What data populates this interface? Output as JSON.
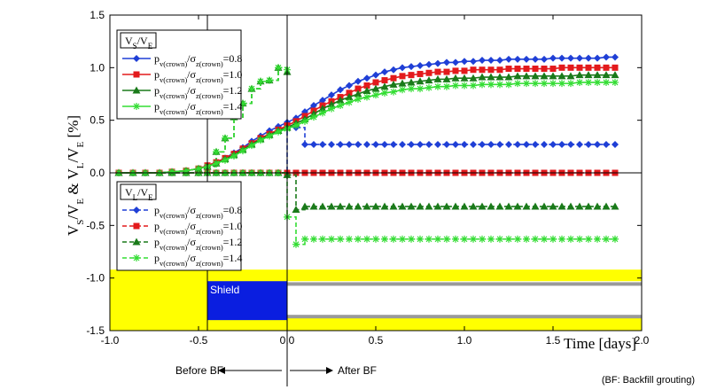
{
  "chart_data": {
    "type": "line",
    "xlabel": "Time [days]",
    "ylabel": "V_S/V_E & V_L/V_E [%]",
    "xlim": [
      -1.0,
      2.0
    ],
    "ylim": [
      -1.5,
      1.5
    ],
    "xticks": [
      "-1.0",
      "-0.5",
      "0.0",
      "0.5",
      "1.0",
      "1.5",
      "2.0"
    ],
    "yticks": [
      "1.5",
      "1.0",
      "0.5",
      "0.0",
      "-0.5",
      "-1.0",
      "-1.5"
    ],
    "legend_vs": {
      "title_main": "V",
      "title_sub1": "S",
      "title_div": "/V",
      "title_sub2": "E",
      "entries": [
        {
          "pre": "p",
          "sub1": "v(crown)",
          "mid": "/σ",
          "sub2": "z(crown)",
          "val": "=0.8"
        },
        {
          "pre": "p",
          "sub1": "v(crown)",
          "mid": "/σ",
          "sub2": "z(crown)",
          "val": "=1.0"
        },
        {
          "pre": "p",
          "sub1": "v(crown)",
          "mid": "/σ",
          "sub2": "z(crown)",
          "val": "=1.2"
        },
        {
          "pre": "p",
          "sub1": "v(crown)",
          "mid": "/σ",
          "sub2": "z(crown)",
          "val": "=1.4"
        }
      ]
    },
    "legend_vl": {
      "title_main": "V",
      "title_sub1": "L",
      "title_div": "/V",
      "title_sub2": "E",
      "entries": [
        {
          "pre": "p",
          "sub1": "v(crown)",
          "mid": "/σ",
          "sub2": "z(crown)",
          "val": "=0.8"
        },
        {
          "pre": "p",
          "sub1": "v(crown)",
          "mid": "/σ",
          "sub2": "z(crown)",
          "val": "=1.0"
        },
        {
          "pre": "p",
          "sub1": "v(crown)",
          "mid": "/σ",
          "sub2": "z(crown)",
          "val": "=1.2"
        },
        {
          "pre": "p",
          "sub1": "v(crown)",
          "mid": "/σ",
          "sub2": "z(crown)",
          "val": "=1.4"
        }
      ]
    },
    "series_colors": [
      "#1f3fd6",
      "#e31a1c",
      "#1a7a1a",
      "#33dd33"
    ],
    "series_markers": [
      "diamond",
      "square",
      "triangle",
      "star"
    ],
    "vs_series": [
      {
        "param": 0.8,
        "x": [
          -0.95,
          -0.87,
          -0.8,
          -0.72,
          -0.65,
          -0.57,
          -0.5,
          -0.45,
          -0.4,
          -0.35,
          -0.3,
          -0.25,
          -0.2,
          -0.15,
          -0.1,
          -0.05,
          0.0,
          0.05,
          0.1,
          0.15,
          0.2,
          0.25,
          0.3,
          0.35,
          0.4,
          0.45,
          0.5,
          0.55,
          0.6,
          0.65,
          0.7,
          0.75,
          0.8,
          0.85,
          0.9,
          0.95,
          1.0,
          1.05,
          1.1,
          1.15,
          1.2,
          1.25,
          1.3,
          1.35,
          1.4,
          1.45,
          1.5,
          1.55,
          1.6,
          1.65,
          1.7,
          1.75,
          1.8,
          1.85
        ],
        "y": [
          0.0,
          0.0,
          0.0,
          0.0,
          0.01,
          0.02,
          0.04,
          0.07,
          0.1,
          0.14,
          0.19,
          0.24,
          0.3,
          0.35,
          0.4,
          0.44,
          0.48,
          0.52,
          0.58,
          0.64,
          0.69,
          0.74,
          0.79,
          0.83,
          0.87,
          0.9,
          0.93,
          0.96,
          0.98,
          1.0,
          1.01,
          1.02,
          1.03,
          1.04,
          1.05,
          1.05,
          1.06,
          1.06,
          1.07,
          1.07,
          1.07,
          1.08,
          1.08,
          1.08,
          1.08,
          1.08,
          1.09,
          1.09,
          1.09,
          1.09,
          1.09,
          1.09,
          1.1,
          1.1
        ]
      },
      {
        "param": 1.0,
        "x": [
          -0.95,
          -0.87,
          -0.8,
          -0.72,
          -0.65,
          -0.57,
          -0.5,
          -0.45,
          -0.4,
          -0.35,
          -0.3,
          -0.25,
          -0.2,
          -0.15,
          -0.1,
          -0.05,
          0.0,
          0.05,
          0.1,
          0.15,
          0.2,
          0.25,
          0.3,
          0.35,
          0.4,
          0.45,
          0.5,
          0.55,
          0.6,
          0.65,
          0.7,
          0.75,
          0.8,
          0.85,
          0.9,
          0.95,
          1.0,
          1.05,
          1.1,
          1.15,
          1.2,
          1.25,
          1.3,
          1.35,
          1.4,
          1.45,
          1.5,
          1.55,
          1.6,
          1.65,
          1.7,
          1.75,
          1.8,
          1.85
        ],
        "y": [
          0.0,
          0.0,
          0.0,
          0.0,
          0.01,
          0.02,
          0.04,
          0.07,
          0.1,
          0.14,
          0.18,
          0.23,
          0.28,
          0.33,
          0.37,
          0.41,
          0.45,
          0.49,
          0.54,
          0.59,
          0.64,
          0.68,
          0.72,
          0.76,
          0.8,
          0.83,
          0.86,
          0.88,
          0.9,
          0.92,
          0.93,
          0.94,
          0.95,
          0.96,
          0.96,
          0.97,
          0.97,
          0.98,
          0.98,
          0.98,
          0.98,
          0.99,
          0.99,
          0.99,
          0.99,
          0.99,
          0.99,
          1.0,
          1.0,
          1.0,
          1.0,
          1.0,
          1.0,
          1.0
        ]
      },
      {
        "param": 1.2,
        "x": [
          -0.95,
          -0.87,
          -0.8,
          -0.72,
          -0.65,
          -0.57,
          -0.5,
          -0.45,
          -0.4,
          -0.35,
          -0.3,
          -0.25,
          -0.2,
          -0.15,
          -0.1,
          -0.05,
          0.0,
          0.05,
          0.1,
          0.15,
          0.2,
          0.25,
          0.3,
          0.35,
          0.4,
          0.45,
          0.5,
          0.55,
          0.6,
          0.65,
          0.7,
          0.75,
          0.8,
          0.85,
          0.9,
          0.95,
          1.0,
          1.05,
          1.1,
          1.15,
          1.2,
          1.25,
          1.3,
          1.35,
          1.4,
          1.45,
          1.5,
          1.55,
          1.6,
          1.65,
          1.7,
          1.75,
          1.8,
          1.85
        ],
        "y": [
          0.0,
          0.0,
          0.0,
          0.0,
          0.01,
          0.02,
          0.04,
          0.06,
          0.09,
          0.13,
          0.17,
          0.22,
          0.27,
          0.32,
          0.36,
          0.4,
          0.43,
          0.47,
          0.51,
          0.56,
          0.61,
          0.65,
          0.69,
          0.72,
          0.75,
          0.78,
          0.8,
          0.82,
          0.84,
          0.85,
          0.86,
          0.87,
          0.88,
          0.89,
          0.89,
          0.9,
          0.9,
          0.9,
          0.91,
          0.91,
          0.91,
          0.91,
          0.92,
          0.92,
          0.92,
          0.92,
          0.92,
          0.92,
          0.92,
          0.93,
          0.93,
          0.93,
          0.93,
          0.93
        ]
      },
      {
        "param": 1.4,
        "x": [
          -0.95,
          -0.87,
          -0.8,
          -0.72,
          -0.65,
          -0.57,
          -0.5,
          -0.45,
          -0.4,
          -0.35,
          -0.3,
          -0.25,
          -0.2,
          -0.15,
          -0.1,
          -0.05,
          0.0,
          0.05,
          0.1,
          0.15,
          0.2,
          0.25,
          0.3,
          0.35,
          0.4,
          0.45,
          0.5,
          0.55,
          0.6,
          0.65,
          0.7,
          0.75,
          0.8,
          0.85,
          0.9,
          0.95,
          1.0,
          1.05,
          1.1,
          1.15,
          1.2,
          1.25,
          1.3,
          1.35,
          1.4,
          1.45,
          1.5,
          1.55,
          1.6,
          1.65,
          1.7,
          1.75,
          1.8,
          1.85
        ],
        "y": [
          0.0,
          0.0,
          0.0,
          0.0,
          0.01,
          0.02,
          0.04,
          0.06,
          0.09,
          0.12,
          0.16,
          0.21,
          0.26,
          0.31,
          0.35,
          0.39,
          0.42,
          0.45,
          0.49,
          0.53,
          0.57,
          0.61,
          0.64,
          0.67,
          0.7,
          0.72,
          0.74,
          0.76,
          0.77,
          0.79,
          0.8,
          0.8,
          0.81,
          0.82,
          0.82,
          0.83,
          0.83,
          0.83,
          0.84,
          0.84,
          0.84,
          0.84,
          0.85,
          0.85,
          0.85,
          0.85,
          0.85,
          0.85,
          0.85,
          0.86,
          0.86,
          0.86,
          0.86,
          0.86
        ]
      }
    ],
    "vl_series": [
      {
        "param": 0.8,
        "x": [
          -0.95,
          -0.87,
          -0.8,
          -0.72,
          -0.65,
          -0.57,
          -0.5,
          -0.45,
          -0.4,
          -0.35,
          -0.3,
          -0.25,
          -0.2,
          -0.15,
          -0.1,
          -0.05,
          0.0,
          0.05,
          0.1,
          0.15,
          0.2,
          0.25,
          0.3,
          0.35,
          0.4,
          0.45,
          0.5,
          0.55,
          0.6,
          0.65,
          0.7,
          0.75,
          0.8,
          0.85,
          0.9,
          0.95,
          1.0,
          1.05,
          1.1,
          1.15,
          1.2,
          1.25,
          1.3,
          1.35,
          1.4,
          1.45,
          1.5,
          1.55,
          1.6,
          1.65,
          1.7,
          1.75,
          1.8,
          1.85
        ],
        "y": [
          0.0,
          0.0,
          0.0,
          0.0,
          0.0,
          0.0,
          0.0,
          0.0,
          0.0,
          0.0,
          0.0,
          0.0,
          0.0,
          0.0,
          0.0,
          0.0,
          0.45,
          0.43,
          0.27,
          0.27,
          0.27,
          0.27,
          0.27,
          0.27,
          0.27,
          0.27,
          0.27,
          0.27,
          0.27,
          0.27,
          0.27,
          0.27,
          0.27,
          0.27,
          0.27,
          0.27,
          0.27,
          0.27,
          0.27,
          0.27,
          0.27,
          0.27,
          0.27,
          0.27,
          0.27,
          0.27,
          0.27,
          0.27,
          0.27,
          0.27,
          0.27,
          0.27,
          0.27,
          0.27
        ]
      },
      {
        "param": 1.0,
        "x": [
          -0.95,
          -0.87,
          -0.8,
          -0.72,
          -0.65,
          -0.57,
          -0.5,
          -0.45,
          -0.4,
          -0.35,
          -0.3,
          -0.25,
          -0.2,
          -0.15,
          -0.1,
          -0.05,
          0.0,
          0.05,
          0.1,
          0.15,
          0.2,
          0.25,
          0.3,
          0.35,
          0.4,
          0.45,
          0.5,
          0.55,
          0.6,
          0.65,
          0.7,
          0.75,
          0.8,
          0.85,
          0.9,
          0.95,
          1.0,
          1.05,
          1.1,
          1.15,
          1.2,
          1.25,
          1.3,
          1.35,
          1.4,
          1.45,
          1.5,
          1.55,
          1.6,
          1.65,
          1.7,
          1.75,
          1.8,
          1.85
        ],
        "y": [
          0.0,
          0.0,
          0.0,
          0.0,
          0.0,
          0.0,
          0.0,
          0.0,
          0.0,
          0.0,
          0.0,
          0.0,
          0.0,
          0.0,
          0.0,
          0.0,
          0.0,
          0.0,
          0.0,
          0.0,
          0.0,
          0.0,
          0.0,
          0.0,
          0.0,
          0.0,
          0.0,
          0.0,
          0.0,
          0.0,
          0.0,
          0.0,
          0.0,
          0.0,
          0.0,
          0.0,
          0.0,
          0.0,
          0.0,
          0.0,
          0.0,
          0.0,
          0.0,
          0.0,
          0.0,
          0.0,
          0.0,
          0.0,
          0.0,
          0.0,
          0.0,
          0.0,
          0.0,
          0.0
        ]
      },
      {
        "param": 1.2,
        "x": [
          -0.95,
          -0.87,
          -0.8,
          -0.72,
          -0.65,
          -0.57,
          -0.5,
          -0.45,
          -0.4,
          -0.35,
          -0.3,
          -0.25,
          -0.2,
          -0.15,
          -0.1,
          -0.05,
          0.0,
          0.05,
          0.1,
          0.15,
          0.2,
          0.25,
          0.3,
          0.35,
          0.4,
          0.45,
          0.5,
          0.55,
          0.6,
          0.65,
          0.7,
          0.75,
          0.8,
          0.85,
          0.9,
          0.95,
          1.0,
          1.05,
          1.1,
          1.15,
          1.2,
          1.25,
          1.3,
          1.35,
          1.4,
          1.45,
          1.5,
          1.55,
          1.6,
          1.65,
          1.7,
          1.75,
          1.8,
          1.85
        ],
        "y": [
          0.0,
          0.0,
          0.0,
          0.0,
          0.0,
          0.0,
          0.0,
          0.0,
          0.0,
          0.0,
          0.0,
          0.0,
          0.0,
          0.0,
          0.0,
          0.0,
          -0.02,
          -0.35,
          -0.32,
          -0.32,
          -0.32,
          -0.32,
          -0.32,
          -0.32,
          -0.32,
          -0.32,
          -0.32,
          -0.32,
          -0.32,
          -0.32,
          -0.32,
          -0.32,
          -0.32,
          -0.32,
          -0.32,
          -0.32,
          -0.32,
          -0.32,
          -0.32,
          -0.32,
          -0.32,
          -0.32,
          -0.32,
          -0.32,
          -0.32,
          -0.32,
          -0.32,
          -0.32,
          -0.32,
          -0.32,
          -0.32,
          -0.32,
          -0.32,
          -0.32
        ]
      },
      {
        "param": 1.4,
        "x": [
          -0.95,
          -0.87,
          -0.8,
          -0.72,
          -0.65,
          -0.57,
          -0.5,
          -0.45,
          -0.4,
          -0.35,
          -0.3,
          -0.25,
          -0.2,
          -0.15,
          -0.1,
          -0.05,
          0.0,
          0.05,
          0.1,
          0.15,
          0.2,
          0.25,
          0.3,
          0.35,
          0.4,
          0.45,
          0.5,
          0.55,
          0.6,
          0.65,
          0.7,
          0.75,
          0.8,
          0.85,
          0.9,
          0.95,
          1.0,
          1.05,
          1.1,
          1.15,
          1.2,
          1.25,
          1.3,
          1.35,
          1.4,
          1.45,
          1.5,
          1.55,
          1.6,
          1.65,
          1.7,
          1.75,
          1.8,
          1.85
        ],
        "y": [
          0.0,
          0.0,
          0.0,
          0.0,
          0.0,
          0.0,
          0.0,
          0.0,
          0.0,
          0.0,
          0.0,
          0.0,
          0.0,
          0.0,
          0.0,
          0.0,
          -0.42,
          -0.68,
          -0.63,
          -0.63,
          -0.63,
          -0.63,
          -0.63,
          -0.63,
          -0.63,
          -0.63,
          -0.63,
          -0.63,
          -0.63,
          -0.63,
          -0.63,
          -0.63,
          -0.63,
          -0.63,
          -0.63,
          -0.63,
          -0.63,
          -0.63,
          -0.63,
          -0.63,
          -0.63,
          -0.63,
          -0.63,
          -0.63,
          -0.63,
          -0.63,
          -0.63,
          -0.63,
          -0.63,
          -0.63,
          -0.63,
          -0.63,
          -0.63,
          -0.63
        ]
      }
    ],
    "before_bf_curves": [
      {
        "param": 1.2,
        "x": [
          -0.5,
          -0.45,
          -0.4,
          -0.35,
          -0.3,
          -0.25,
          -0.2,
          -0.15,
          -0.1,
          -0.05,
          0.0
        ],
        "y": [
          0.0,
          0.06,
          0.2,
          0.33,
          0.53,
          0.66,
          0.8,
          0.87,
          0.88,
          1.0,
          0.96
        ]
      },
      {
        "param": 1.4,
        "x": [
          -0.5,
          -0.45,
          -0.4,
          -0.35,
          -0.3,
          -0.25,
          -0.2,
          -0.15,
          -0.1,
          -0.05,
          0.0
        ],
        "y": [
          0.0,
          0.06,
          0.2,
          0.33,
          0.53,
          0.66,
          0.8,
          0.87,
          0.88,
          1.0,
          0.98
        ]
      }
    ],
    "annotations": {
      "shield": "Shield",
      "before": "Before BF",
      "after": "After BF",
      "note": "(BF: Backfill grouting)"
    },
    "colors": {
      "yellow_band": "#ffff00",
      "shield": "#0a1ee0",
      "lining": "#9a9a9a"
    },
    "grid": false
  }
}
